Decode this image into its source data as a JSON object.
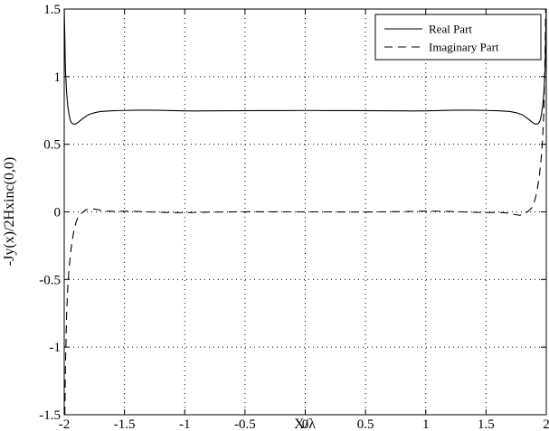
{
  "chart_data": {
    "type": "line",
    "title": "",
    "xlabel": "X/λ",
    "ylabel": "-Jy(x)/2Hxinc(0,0)",
    "xlim": [
      -2,
      2
    ],
    "ylim": [
      -1.5,
      1.5
    ],
    "xticks": [
      -2,
      -1.5,
      -1,
      -0.5,
      0,
      0.5,
      1,
      1.5,
      2
    ],
    "yticks": [
      -1.5,
      -1,
      -0.5,
      0,
      0.5,
      1,
      1.5
    ],
    "xtick_labels": [
      "-2",
      "-1.5",
      "-1",
      "-0.5",
      "0",
      "0.5",
      "1",
      "1.5",
      "2"
    ],
    "ytick_labels": [
      "-1.5",
      "-1",
      "-0.5",
      "0",
      "0.5",
      "1",
      "1.5"
    ],
    "grid": true,
    "legend_position": "top-right",
    "series": [
      {
        "name": "Real Part",
        "style": "solid",
        "x": [
          -2,
          -1.995,
          -1.99,
          -1.98,
          -1.97,
          -1.96,
          -1.95,
          -1.94,
          -1.93,
          -1.92,
          -1.9,
          -1.88,
          -1.86,
          -1.83,
          -1.8,
          -1.75,
          -1.7,
          -1.6,
          -1.5,
          -1.4,
          -1.3,
          -1.2,
          -1.1,
          -1.0,
          -0.9,
          -0.8,
          -0.6,
          -0.4,
          -0.2,
          0,
          0.2,
          0.4,
          0.6,
          0.8,
          0.9,
          1.0,
          1.1,
          1.2,
          1.3,
          1.4,
          1.5,
          1.6,
          1.7,
          1.75,
          1.8,
          1.83,
          1.86,
          1.88,
          1.9,
          1.92,
          1.93,
          1.94,
          1.95,
          1.96,
          1.97,
          1.98,
          1.99,
          1.995,
          2
        ],
        "y": [
          1.5,
          1.3,
          1.05,
          0.88,
          0.78,
          0.72,
          0.68,
          0.66,
          0.652,
          0.648,
          0.652,
          0.665,
          0.68,
          0.7,
          0.718,
          0.733,
          0.742,
          0.748,
          0.75,
          0.752,
          0.752,
          0.751,
          0.749,
          0.747,
          0.746,
          0.747,
          0.748,
          0.749,
          0.749,
          0.75,
          0.749,
          0.749,
          0.748,
          0.747,
          0.746,
          0.747,
          0.749,
          0.751,
          0.752,
          0.752,
          0.75,
          0.748,
          0.742,
          0.733,
          0.718,
          0.7,
          0.68,
          0.665,
          0.652,
          0.648,
          0.652,
          0.66,
          0.68,
          0.72,
          0.78,
          0.88,
          1.05,
          1.3,
          1.5
        ]
      },
      {
        "name": "Imaginary Part",
        "style": "dashed",
        "x": [
          -1.995,
          -1.99,
          -1.98,
          -1.97,
          -1.96,
          -1.95,
          -1.94,
          -1.92,
          -1.9,
          -1.88,
          -1.85,
          -1.82,
          -1.78,
          -1.74,
          -1.7,
          -1.65,
          -1.6,
          -1.5,
          -1.4,
          -1.3,
          -1.2,
          -1.1,
          -1.0,
          -0.9,
          -0.8,
          -0.6,
          -0.4,
          -0.2,
          0,
          0.2,
          0.4,
          0.6,
          0.8,
          0.9,
          1.0,
          1.1,
          1.2,
          1.3,
          1.4,
          1.5,
          1.6,
          1.65,
          1.7,
          1.74,
          1.78,
          1.82,
          1.85,
          1.88,
          1.9,
          1.92,
          1.94,
          1.95,
          1.96,
          1.97,
          1.98,
          1.99,
          1.995
        ],
        "y": [
          -1.5,
          -1.15,
          -0.75,
          -0.55,
          -0.42,
          -0.33,
          -0.25,
          -0.14,
          -0.07,
          -0.03,
          -0.005,
          0.015,
          0.025,
          0.02,
          0.012,
          0.006,
          0.004,
          0.005,
          0.003,
          0.0,
          -0.003,
          -0.005,
          -0.006,
          -0.004,
          -0.002,
          0.0,
          0.001,
          0.0,
          0.0,
          0.0,
          -0.001,
          0.0,
          0.002,
          0.004,
          0.006,
          0.005,
          0.003,
          0.0,
          -0.003,
          -0.005,
          -0.004,
          -0.006,
          -0.012,
          -0.02,
          -0.025,
          -0.015,
          0.005,
          0.03,
          0.07,
          0.14,
          0.25,
          0.33,
          0.42,
          0.55,
          0.75,
          1.15,
          1.5
        ]
      }
    ]
  }
}
